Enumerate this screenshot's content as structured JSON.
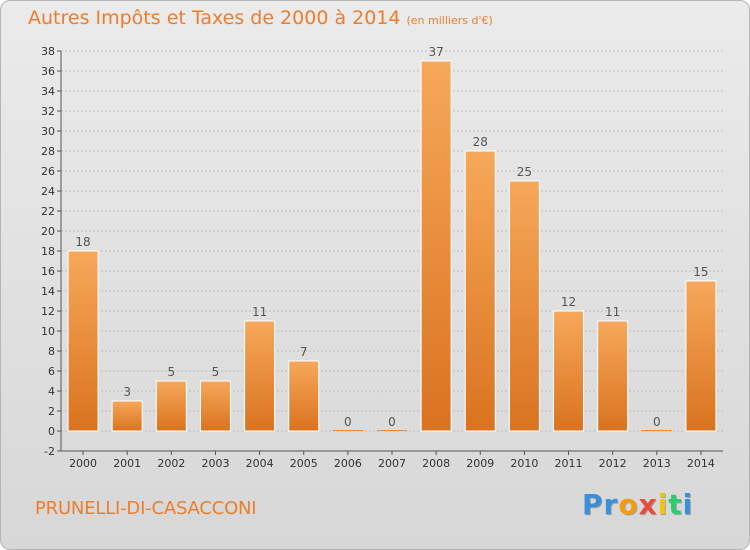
{
  "header": {
    "title": "Autres Impôts et Taxes de 2000 à 2014",
    "unit": "(en milliers d'€)"
  },
  "footer": {
    "commune": "PRUNELLI-DI-CASACCONI",
    "logo_letters": [
      "P",
      "r",
      "o",
      "x",
      "i",
      "t",
      "i"
    ],
    "logo_colors": [
      "#3a8fd8",
      "#3a8fd8",
      "#f39c12",
      "#e74c3c",
      "#f1c40f",
      "#2ecc71",
      "#3a8fd8"
    ]
  },
  "colors": {
    "bar_light": "#f6a85a",
    "bar_dark": "#d9731f",
    "grid": "#bdbdbd",
    "axis": "#555555"
  },
  "chart_data": {
    "type": "bar",
    "title": "Autres Impôts et Taxes de 2000 à 2014",
    "subtitle": "(en milliers d'€)",
    "categories": [
      "2000",
      "2001",
      "2002",
      "2003",
      "2004",
      "2005",
      "2006",
      "2007",
      "2008",
      "2009",
      "2010",
      "2011",
      "2012",
      "2013",
      "2014"
    ],
    "values": [
      18,
      3,
      5,
      5,
      11,
      7,
      0,
      0,
      37,
      28,
      25,
      12,
      11,
      0,
      15
    ],
    "ylim": [
      -2,
      38
    ],
    "yticks": [
      -2,
      0,
      2,
      4,
      6,
      8,
      10,
      12,
      14,
      16,
      18,
      20,
      22,
      24,
      26,
      28,
      30,
      32,
      34,
      36,
      38
    ],
    "grid": true,
    "legend": "none"
  }
}
